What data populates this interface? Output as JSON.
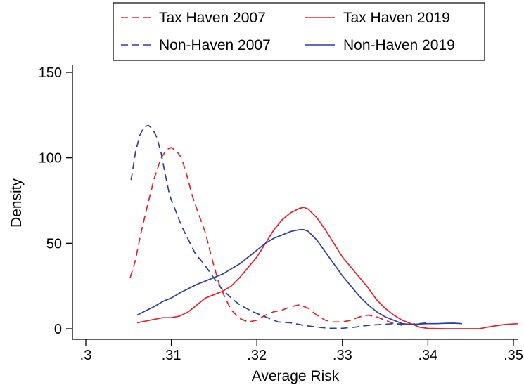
{
  "chart_data": {
    "type": "line",
    "title": "",
    "xlabel": "Average Risk",
    "ylabel": "Density",
    "xlim": [
      0.3,
      0.35
    ],
    "ylim": [
      0,
      150
    ],
    "x_ticks": [
      0.3,
      0.31,
      0.32,
      0.33,
      0.34,
      0.35
    ],
    "x_tick_labels": [
      ".3",
      ".31",
      ".32",
      ".33",
      ".34",
      ".35"
    ],
    "y_ticks": [
      0,
      50,
      100,
      150
    ],
    "y_tick_labels": [
      "0",
      "50",
      "100",
      "150"
    ],
    "grid": false,
    "legend_position": "top",
    "colors": {
      "tax_haven": "#e8202a",
      "non_haven": "#2b3f99"
    },
    "series": [
      {
        "name": "Tax Haven 2007",
        "color": "#e8202a",
        "dash": "dashed",
        "points": [
          [
            0.3052,
            30
          ],
          [
            0.3058,
            40
          ],
          [
            0.3064,
            55
          ],
          [
            0.3072,
            72
          ],
          [
            0.308,
            88
          ],
          [
            0.3088,
            100
          ],
          [
            0.3095,
            105
          ],
          [
            0.31,
            106
          ],
          [
            0.3106,
            104
          ],
          [
            0.3112,
            100
          ],
          [
            0.3118,
            90
          ],
          [
            0.3125,
            77
          ],
          [
            0.3132,
            67
          ],
          [
            0.314,
            56
          ],
          [
            0.3148,
            40
          ],
          [
            0.3156,
            26
          ],
          [
            0.3163,
            18
          ],
          [
            0.317,
            11
          ],
          [
            0.318,
            6
          ],
          [
            0.319,
            4
          ],
          [
            0.32,
            5
          ],
          [
            0.321,
            8
          ],
          [
            0.322,
            10
          ],
          [
            0.323,
            11
          ],
          [
            0.324,
            13
          ],
          [
            0.325,
            14
          ],
          [
            0.326,
            12
          ],
          [
            0.327,
            8
          ],
          [
            0.328,
            5
          ],
          [
            0.329,
            4
          ],
          [
            0.33,
            4
          ],
          [
            0.331,
            5
          ],
          [
            0.332,
            7
          ],
          [
            0.333,
            8
          ],
          [
            0.334,
            7
          ],
          [
            0.335,
            5
          ],
          [
            0.336,
            3
          ],
          [
            0.337,
            2
          ]
        ]
      },
      {
        "name": "Non-Haven 2007",
        "color": "#2b3f99",
        "dash": "dashed",
        "points": [
          [
            0.3053,
            87
          ],
          [
            0.3058,
            103
          ],
          [
            0.3063,
            113
          ],
          [
            0.3068,
            118
          ],
          [
            0.3073,
            119
          ],
          [
            0.3078,
            117
          ],
          [
            0.3083,
            112
          ],
          [
            0.3088,
            103
          ],
          [
            0.3093,
            90
          ],
          [
            0.3098,
            78
          ],
          [
            0.3105,
            69
          ],
          [
            0.3112,
            60
          ],
          [
            0.312,
            52
          ],
          [
            0.3128,
            44
          ],
          [
            0.3138,
            38
          ],
          [
            0.3148,
            31
          ],
          [
            0.3158,
            24
          ],
          [
            0.317,
            18
          ],
          [
            0.318,
            14
          ],
          [
            0.3195,
            10
          ],
          [
            0.321,
            7
          ],
          [
            0.3225,
            4
          ],
          [
            0.324,
            3.5
          ],
          [
            0.3255,
            2
          ],
          [
            0.327,
            1
          ],
          [
            0.3285,
            0.3
          ],
          [
            0.33,
            0.3
          ],
          [
            0.3315,
            1
          ],
          [
            0.333,
            2
          ],
          [
            0.3345,
            2.5
          ],
          [
            0.336,
            3
          ],
          [
            0.3375,
            2.5
          ],
          [
            0.339,
            3
          ],
          [
            0.34,
            3.5
          ]
        ]
      },
      {
        "name": "Tax Haven 2019",
        "color": "#e8202a",
        "dash": "solid",
        "points": [
          [
            0.306,
            3.5
          ],
          [
            0.307,
            4.5
          ],
          [
            0.308,
            5.5
          ],
          [
            0.309,
            6.5
          ],
          [
            0.31,
            6.5
          ],
          [
            0.311,
            7.5
          ],
          [
            0.312,
            10
          ],
          [
            0.313,
            14
          ],
          [
            0.314,
            18
          ],
          [
            0.315,
            20
          ],
          [
            0.316,
            22
          ],
          [
            0.317,
            25
          ],
          [
            0.318,
            30
          ],
          [
            0.319,
            36
          ],
          [
            0.32,
            42
          ],
          [
            0.321,
            50
          ],
          [
            0.322,
            58
          ],
          [
            0.323,
            64
          ],
          [
            0.324,
            68
          ],
          [
            0.325,
            70.5
          ],
          [
            0.3255,
            71
          ],
          [
            0.326,
            70
          ],
          [
            0.327,
            65
          ],
          [
            0.328,
            58
          ],
          [
            0.329,
            50
          ],
          [
            0.33,
            42
          ],
          [
            0.331,
            36
          ],
          [
            0.332,
            30
          ],
          [
            0.333,
            24
          ],
          [
            0.334,
            17
          ],
          [
            0.335,
            12
          ],
          [
            0.336,
            8
          ],
          [
            0.337,
            5
          ],
          [
            0.338,
            3
          ],
          [
            0.339,
            1
          ],
          [
            0.34,
            0.2
          ],
          [
            0.342,
            0
          ],
          [
            0.344,
            0
          ],
          [
            0.346,
            0
          ],
          [
            0.347,
            1
          ],
          [
            0.348,
            1.8
          ],
          [
            0.349,
            2.5
          ],
          [
            0.3505,
            3
          ]
        ]
      },
      {
        "name": "Non-Haven 2019",
        "color": "#2b3f99",
        "dash": "solid",
        "points": [
          [
            0.306,
            8
          ],
          [
            0.307,
            10.5
          ],
          [
            0.308,
            13
          ],
          [
            0.309,
            16
          ],
          [
            0.31,
            18
          ],
          [
            0.311,
            21
          ],
          [
            0.312,
            23.5
          ],
          [
            0.313,
            26
          ],
          [
            0.314,
            28
          ],
          [
            0.315,
            30
          ],
          [
            0.316,
            32
          ],
          [
            0.317,
            35
          ],
          [
            0.318,
            38
          ],
          [
            0.319,
            42
          ],
          [
            0.32,
            46
          ],
          [
            0.321,
            50
          ],
          [
            0.322,
            53
          ],
          [
            0.323,
            55
          ],
          [
            0.324,
            57
          ],
          [
            0.325,
            58
          ],
          [
            0.3255,
            58
          ],
          [
            0.326,
            57
          ],
          [
            0.327,
            52
          ],
          [
            0.328,
            45
          ],
          [
            0.329,
            38
          ],
          [
            0.33,
            31
          ],
          [
            0.331,
            25
          ],
          [
            0.332,
            19
          ],
          [
            0.333,
            14
          ],
          [
            0.334,
            10
          ],
          [
            0.335,
            7
          ],
          [
            0.336,
            5
          ],
          [
            0.337,
            3
          ],
          [
            0.338,
            2.5
          ],
          [
            0.339,
            2.8
          ],
          [
            0.34,
            3
          ],
          [
            0.341,
            3
          ],
          [
            0.342,
            3.2
          ],
          [
            0.343,
            3.3
          ],
          [
            0.344,
            3
          ]
        ]
      }
    ]
  }
}
